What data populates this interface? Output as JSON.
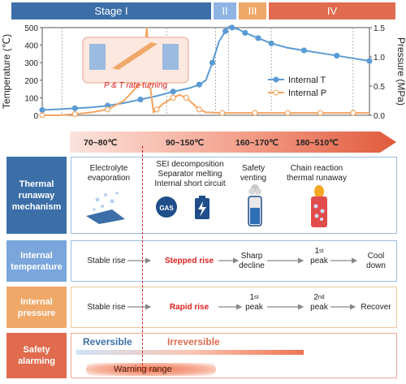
{
  "stages": {
    "s1": "Stage I",
    "s2": "II",
    "s3": "III",
    "s4": "IV"
  },
  "chart_data": {
    "type": "line",
    "xlabel": "",
    "ylabel": "Temperature (℃)",
    "y2label": "Pressure (MPa)",
    "ylim": [
      0,
      500
    ],
    "y2lim": [
      0,
      1.5
    ],
    "yticks": [
      "500",
      "400",
      "300",
      "200",
      "100",
      "0"
    ],
    "y2ticks": [
      "1.5",
      "1.0",
      "0.5",
      "0.0"
    ],
    "annotation": "P & T rate turning",
    "series": [
      {
        "name": "Internal T",
        "color": "#5b9bd5",
        "x": [
          0,
          5,
          10,
          15,
          20,
          25,
          30,
          35,
          40,
          45,
          48,
          50,
          52,
          54,
          56,
          57,
          58,
          60,
          62,
          64,
          66,
          68,
          70,
          75,
          80,
          85,
          90,
          95,
          100
        ],
        "values": [
          30,
          35,
          40,
          45,
          55,
          70,
          90,
          110,
          135,
          155,
          175,
          200,
          300,
          420,
          480,
          505,
          500,
          490,
          470,
          455,
          440,
          425,
          410,
          385,
          370,
          355,
          340,
          325,
          310
        ]
      },
      {
        "name": "Internal P",
        "color": "#f4a460",
        "x": [
          0,
          5,
          10,
          15,
          20,
          25,
          30,
          32,
          33,
          34,
          35,
          37,
          40,
          42,
          44,
          46,
          48,
          50,
          55,
          60,
          65,
          70,
          75,
          80,
          85,
          90,
          95,
          100
        ],
        "values": [
          0.0,
          0.0,
          0.02,
          0.05,
          0.1,
          0.25,
          0.55,
          1.5,
          0.5,
          0.05,
          0.1,
          0.2,
          0.3,
          0.35,
          0.3,
          0.2,
          0.1,
          0.05,
          0.04,
          0.04,
          0.04,
          0.04,
          0.04,
          0.04,
          0.04,
          0.04,
          0.04,
          0.04
        ]
      }
    ]
  },
  "temps": {
    "t1": "70~80℃",
    "t2": "90~150℃",
    "t3": "160~170℃",
    "t4": "180~510℃"
  },
  "rows": {
    "mechanism": {
      "header": "Thermal runaway mechanism",
      "c1": "Electrolyte evaporation",
      "c2a": "SEI decomposition",
      "c2b": "Separator melting",
      "c2c": "Internal short circuit",
      "c3": "Safety venting",
      "c4": "Chain reaction thermal runaway",
      "gas": "GAS"
    },
    "temperature": {
      "header": "Internal temperature",
      "c1": "Stable rise",
      "c2": "Stepped rise",
      "c3": "Sharp decline",
      "c4": "1",
      "c4sup": "st",
      "c4b": "peak",
      "c5": "Cool down"
    },
    "pressure": {
      "header": "Internal pressure",
      "c1": "Stable rise",
      "c2": "Rapid rise",
      "c3": "1",
      "c3sup": "st",
      "c3b": "peak",
      "c4": "2",
      "c4sup": "nd",
      "c4b": "peak",
      "c5": "Recover"
    },
    "safety": {
      "header": "Safety alarming",
      "reversible": "Reversible",
      "irreversible": "Irreversible",
      "warning": "Warning range"
    }
  }
}
